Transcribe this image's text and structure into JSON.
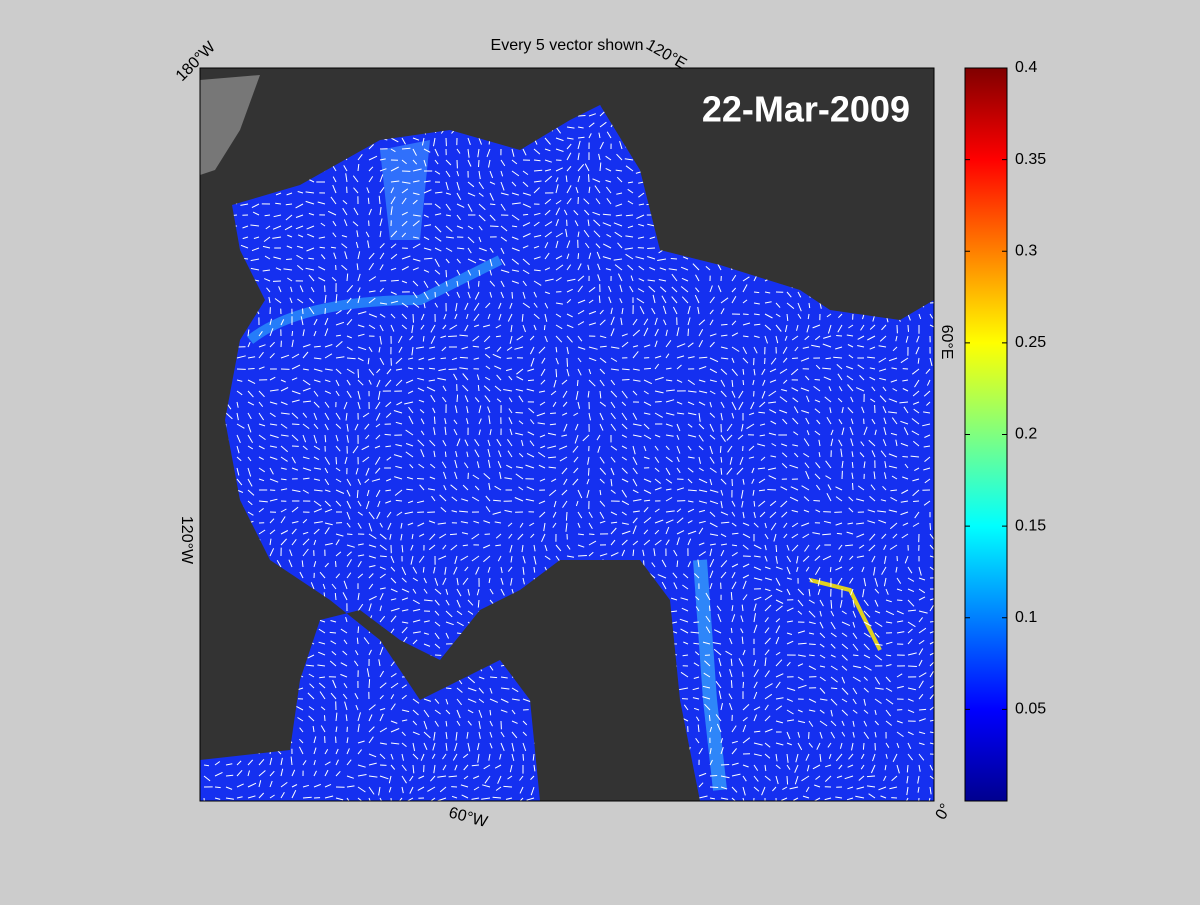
{
  "title": "Every 5 vector shown",
  "date_label": "22-Mar-2009",
  "graticule_labels": [
    "180°W",
    "120°E",
    "60°E",
    "0°",
    "60°W",
    "120°W"
  ],
  "colorbar": {
    "clim": [
      0,
      0.4
    ],
    "ticks": [
      0.05,
      0.1,
      0.15,
      0.2,
      0.25,
      0.3,
      0.35,
      0.4
    ],
    "colormap": "jet"
  }
}
